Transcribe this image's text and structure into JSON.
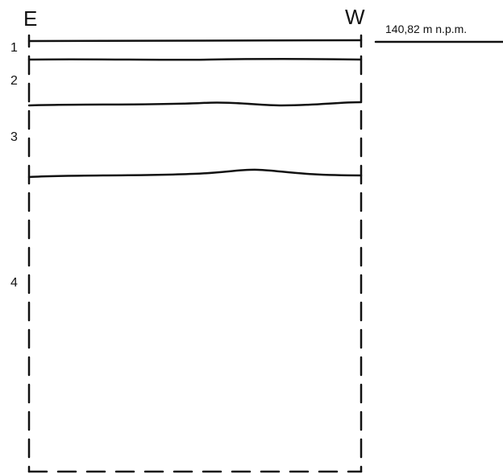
{
  "profile": {
    "left_direction": "E",
    "right_direction": "W",
    "elevation_label": "140,82 m n.p.m.",
    "layers": [
      {
        "label": "1"
      },
      {
        "label": "2"
      },
      {
        "label": "3"
      },
      {
        "label": "4"
      }
    ]
  },
  "colors": {
    "ink": "#111111",
    "background": "#ffffff"
  }
}
